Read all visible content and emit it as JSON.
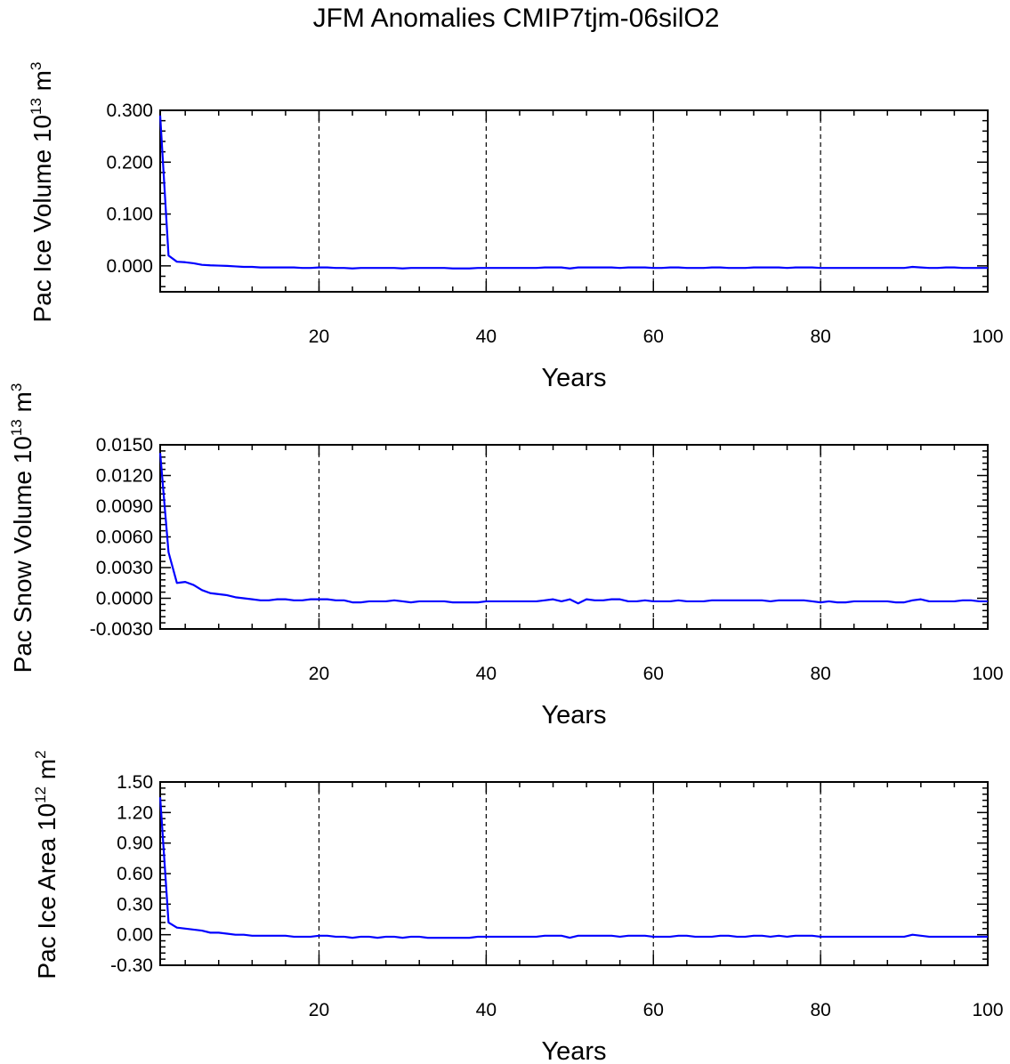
{
  "figure_title": "JFM Anomalies CMIP7tjm-06silO2",
  "colors": {
    "series": "#0000ff",
    "axis": "#000000"
  },
  "chart_data": [
    {
      "type": "line",
      "ylabel_prefix": "Pac Ice Volume 10",
      "ylabel_exp": "13",
      "ylabel_unit": " m",
      "ylabel_unit_exp": "3",
      "xlabel": "Years",
      "xlim": [
        1,
        100
      ],
      "ylim": [
        -0.05,
        0.3
      ],
      "yticks": [
        0.0,
        0.1,
        0.2,
        0.3
      ],
      "ytick_labels": [
        "0.000",
        "0.100",
        "0.200",
        "0.300"
      ],
      "xticks": [
        20,
        40,
        60,
        80,
        100
      ],
      "xtick_labels": [
        "20",
        "40",
        "60",
        "80",
        "100"
      ],
      "grid_x": [
        20,
        40,
        60,
        80
      ],
      "series": [
        {
          "values": [
            0.29,
            0.02,
            0.008,
            0.007,
            0.005,
            0.002,
            0.001,
            0.0005,
            0,
            -0.001,
            -0.002,
            -0.002,
            -0.003,
            -0.003,
            -0.003,
            -0.003,
            -0.003,
            -0.004,
            -0.004,
            -0.003,
            -0.003,
            -0.004,
            -0.004,
            -0.005,
            -0.004,
            -0.004,
            -0.004,
            -0.004,
            -0.004,
            -0.005,
            -0.004,
            -0.004,
            -0.004,
            -0.004,
            -0.004,
            -0.005,
            -0.005,
            -0.005,
            -0.004,
            -0.004,
            -0.004,
            -0.004,
            -0.004,
            -0.004,
            -0.004,
            -0.004,
            -0.003,
            -0.003,
            -0.003,
            -0.005,
            -0.003,
            -0.003,
            -0.003,
            -0.003,
            -0.003,
            -0.004,
            -0.003,
            -0.003,
            -0.003,
            -0.004,
            -0.004,
            -0.003,
            -0.003,
            -0.004,
            -0.004,
            -0.004,
            -0.003,
            -0.003,
            -0.004,
            -0.004,
            -0.004,
            -0.003,
            -0.003,
            -0.003,
            -0.003,
            -0.004,
            -0.003,
            -0.003,
            -0.003,
            -0.004,
            -0.004,
            -0.004,
            -0.004,
            -0.004,
            -0.004,
            -0.004,
            -0.004,
            -0.004,
            -0.004,
            -0.004,
            -0.002,
            -0.003,
            -0.004,
            -0.004,
            -0.003,
            -0.003,
            -0.004,
            -0.004,
            -0.004,
            -0.004
          ]
        }
      ]
    },
    {
      "type": "line",
      "ylabel_prefix": "Pac Snow Volume 10",
      "ylabel_exp": "13",
      "ylabel_unit": " m",
      "ylabel_unit_exp": "3",
      "xlabel": "Years",
      "xlim": [
        1,
        100
      ],
      "ylim": [
        -0.003,
        0.015
      ],
      "yticks": [
        -0.003,
        0.0,
        0.003,
        0.006,
        0.009,
        0.012,
        0.015
      ],
      "ytick_labels": [
        "-0.0030",
        "0.0000",
        "0.0030",
        "0.0060",
        "0.0090",
        "0.0120",
        "0.0150"
      ],
      "xticks": [
        20,
        40,
        60,
        80,
        100
      ],
      "xtick_labels": [
        "20",
        "40",
        "60",
        "80",
        "100"
      ],
      "grid_x": [
        20,
        40,
        60,
        80
      ],
      "series": [
        {
          "values": [
            0.0142,
            0.0045,
            0.0015,
            0.0016,
            0.0013,
            0.0008,
            0.0005,
            0.0004,
            0.0003,
            0.0001,
            0.0,
            -0.0001,
            -0.0002,
            -0.0002,
            -0.0001,
            -0.0001,
            -0.0002,
            -0.0002,
            -0.0001,
            -0.0001,
            -0.0001,
            -0.0002,
            -0.0002,
            -0.0004,
            -0.0004,
            -0.0003,
            -0.0003,
            -0.0003,
            -0.0002,
            -0.0003,
            -0.0004,
            -0.0003,
            -0.0003,
            -0.0003,
            -0.0003,
            -0.0004,
            -0.0004,
            -0.0004,
            -0.0004,
            -0.0003,
            -0.0003,
            -0.0003,
            -0.0003,
            -0.0003,
            -0.0003,
            -0.0003,
            -0.0002,
            -0.0001,
            -0.0003,
            -0.0001,
            -0.0005,
            -0.0001,
            -0.0002,
            -0.0002,
            -0.0001,
            -0.0001,
            -0.0003,
            -0.0003,
            -0.0002,
            -0.0003,
            -0.0003,
            -0.0003,
            -0.0002,
            -0.0003,
            -0.0003,
            -0.0003,
            -0.0002,
            -0.0002,
            -0.0002,
            -0.0002,
            -0.0002,
            -0.0002,
            -0.0002,
            -0.0003,
            -0.0002,
            -0.0002,
            -0.0002,
            -0.0002,
            -0.0003,
            -0.0004,
            -0.0003,
            -0.0004,
            -0.0004,
            -0.0003,
            -0.0003,
            -0.0003,
            -0.0003,
            -0.0003,
            -0.0004,
            -0.0004,
            -0.0002,
            -0.0001,
            -0.0003,
            -0.0003,
            -0.0003,
            -0.0003,
            -0.0002,
            -0.0002,
            -0.0003,
            -0.0003
          ]
        }
      ]
    },
    {
      "type": "line",
      "ylabel_prefix": "Pac Ice Area 10",
      "ylabel_exp": "12",
      "ylabel_unit": " m",
      "ylabel_unit_exp": "2",
      "xlabel": "Years",
      "xlim": [
        1,
        100
      ],
      "ylim": [
        -0.3,
        1.5
      ],
      "yticks": [
        -0.3,
        0.0,
        0.3,
        0.6,
        0.9,
        1.2,
        1.5
      ],
      "ytick_labels": [
        "-0.30",
        "0.00",
        "0.30",
        "0.60",
        "0.90",
        "1.20",
        "1.50"
      ],
      "xticks": [
        20,
        40,
        60,
        80,
        100
      ],
      "xtick_labels": [
        "20",
        "40",
        "60",
        "80",
        "100"
      ],
      "grid_x": [
        20,
        40,
        60,
        80
      ],
      "series": [
        {
          "values": [
            1.35,
            0.12,
            0.07,
            0.06,
            0.05,
            0.04,
            0.02,
            0.02,
            0.01,
            0.0,
            0.0,
            -0.01,
            -0.01,
            -0.01,
            -0.01,
            -0.01,
            -0.02,
            -0.02,
            -0.02,
            -0.01,
            -0.01,
            -0.02,
            -0.02,
            -0.03,
            -0.02,
            -0.02,
            -0.03,
            -0.02,
            -0.02,
            -0.03,
            -0.02,
            -0.02,
            -0.03,
            -0.03,
            -0.03,
            -0.03,
            -0.03,
            -0.03,
            -0.02,
            -0.02,
            -0.02,
            -0.02,
            -0.02,
            -0.02,
            -0.02,
            -0.02,
            -0.01,
            -0.01,
            -0.01,
            -0.03,
            -0.01,
            -0.01,
            -0.01,
            -0.01,
            -0.01,
            -0.02,
            -0.01,
            -0.01,
            -0.01,
            -0.02,
            -0.02,
            -0.02,
            -0.01,
            -0.01,
            -0.02,
            -0.02,
            -0.02,
            -0.01,
            -0.01,
            -0.02,
            -0.02,
            -0.01,
            -0.01,
            -0.02,
            -0.01,
            -0.02,
            -0.01,
            -0.01,
            -0.01,
            -0.02,
            -0.02,
            -0.02,
            -0.02,
            -0.02,
            -0.02,
            -0.02,
            -0.02,
            -0.02,
            -0.02,
            -0.02,
            0.0,
            -0.01,
            -0.02,
            -0.02,
            -0.02,
            -0.02,
            -0.02,
            -0.02,
            -0.02,
            -0.02
          ]
        }
      ]
    }
  ]
}
